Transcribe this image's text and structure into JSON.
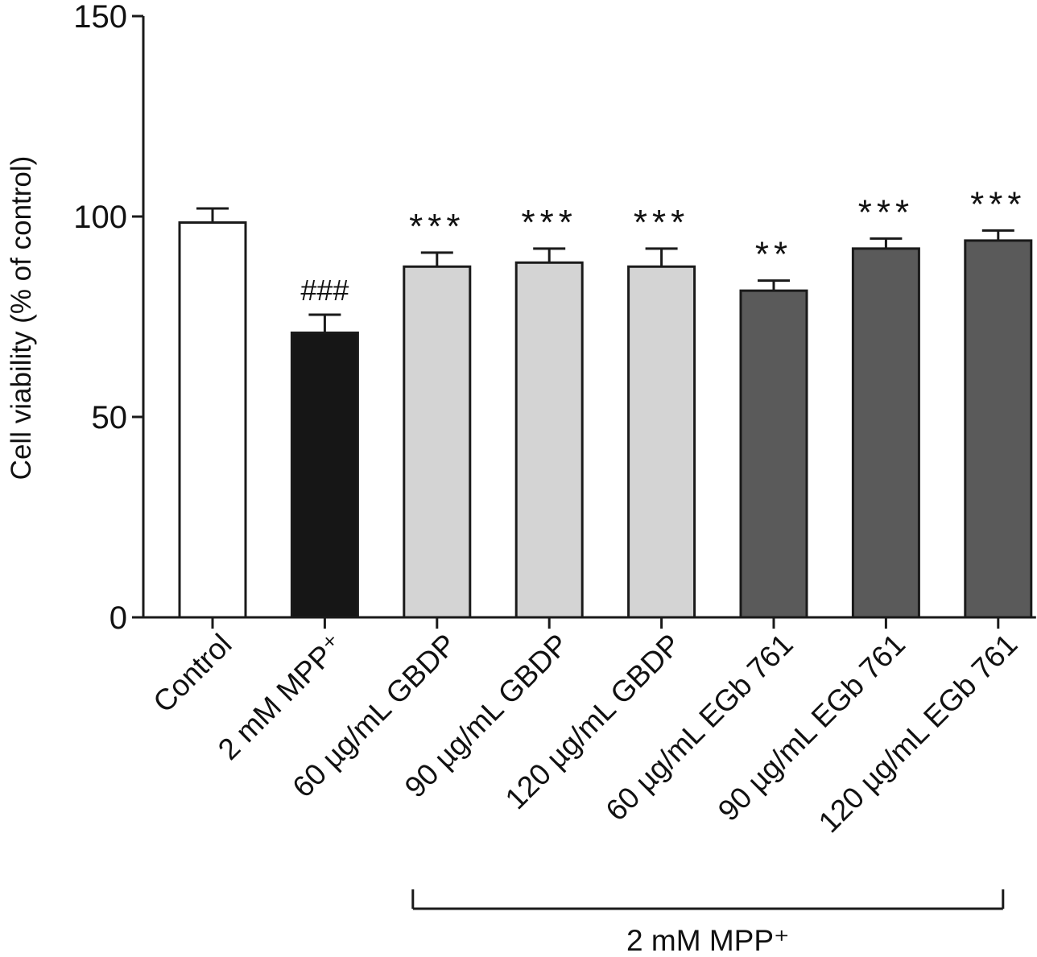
{
  "chart_data": {
    "type": "bar",
    "ylabel": "Cell viability (% of control)",
    "ylim": [
      0,
      150
    ],
    "yticks": [
      "0",
      "50",
      "100",
      "150"
    ],
    "categories": [
      "Control",
      "2 mM MPP⁺",
      "60 µg/mL GBDP",
      "90 µg/mL GBDP",
      "120 µg/mL GBDP",
      "60 µg/mL EGb 761",
      "90 µg/mL EGb 761",
      "120 µg/mL EGb 761"
    ],
    "values": [
      98.5,
      71,
      87.5,
      88.5,
      87.5,
      81.5,
      92,
      94
    ],
    "errors": [
      3.5,
      4.5,
      3.5,
      3.5,
      4.5,
      2.5,
      2.5,
      2.5
    ],
    "significance": [
      "",
      "###",
      "***",
      "***",
      "***",
      "**",
      "***",
      "***"
    ],
    "colors": [
      "#ffffff",
      "#161616",
      "#d4d4d4",
      "#d4d4d4",
      "#d4d4d4",
      "#5a5a5a",
      "#5a5a5a",
      "#5a5a5a"
    ],
    "grid": false,
    "bracket": {
      "label": "2 mM MPP⁺",
      "from_index": 2,
      "to_index": 7
    }
  }
}
